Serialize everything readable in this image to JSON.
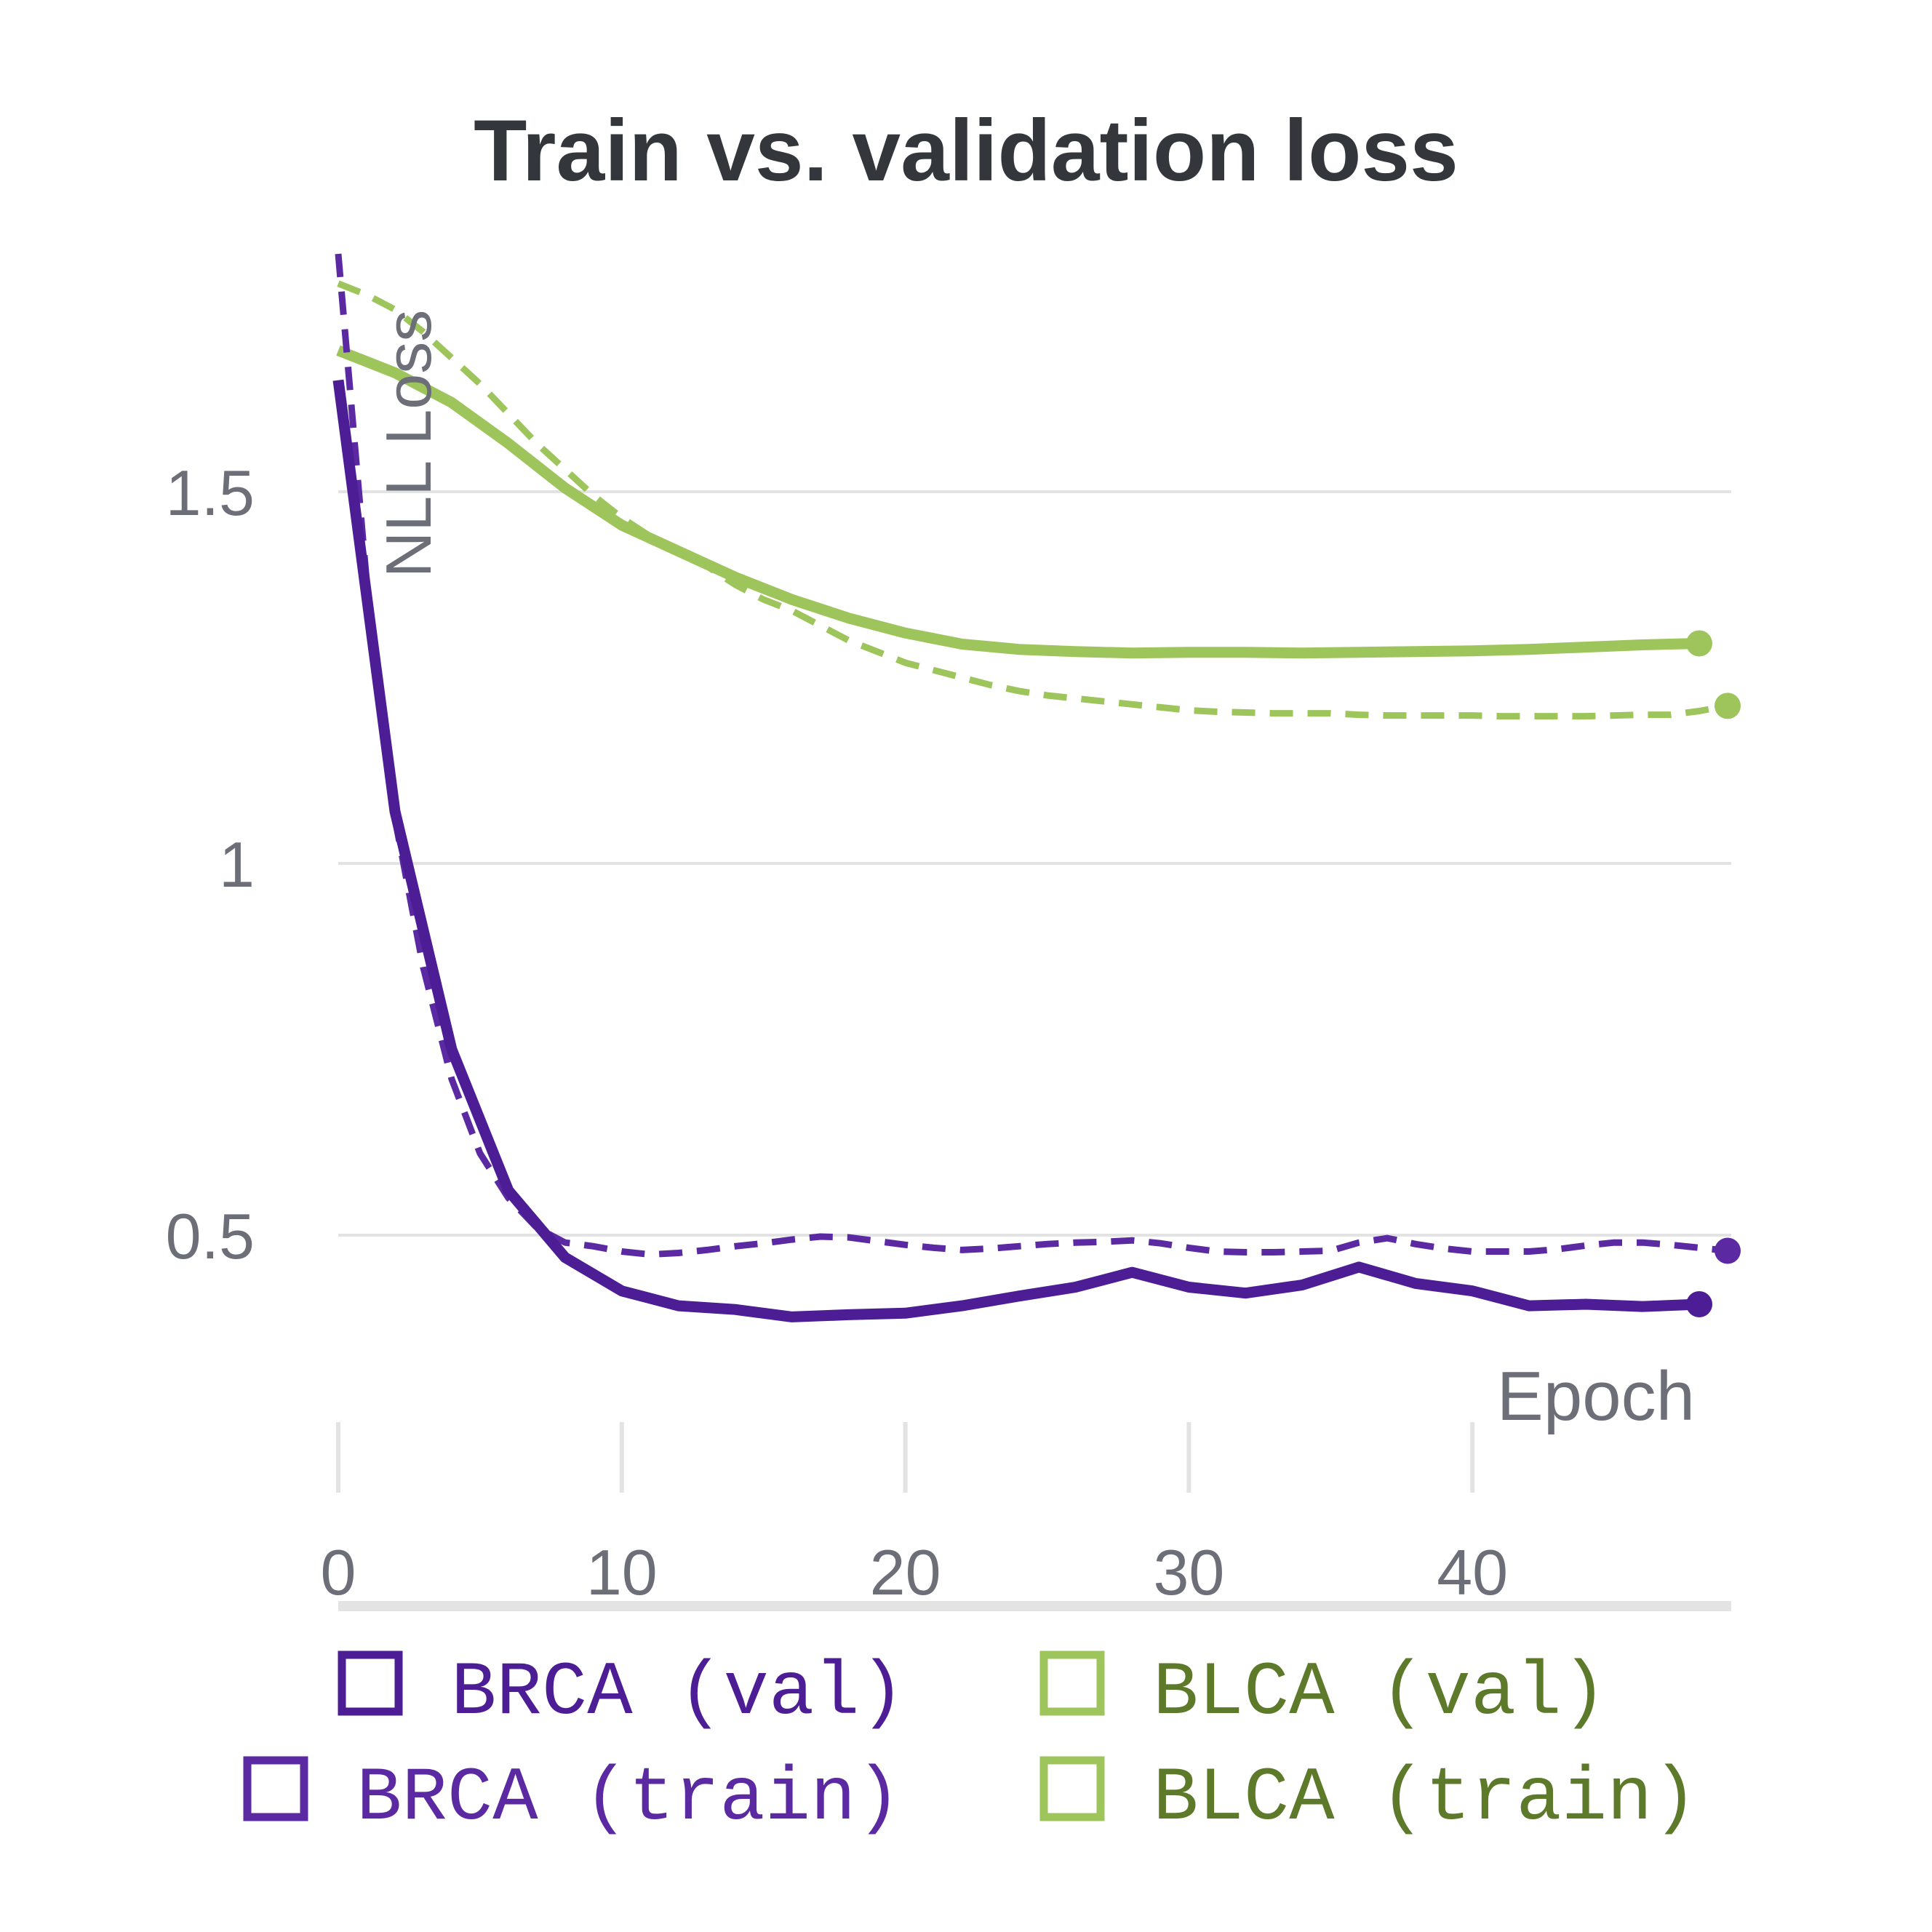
{
  "chart_data": {
    "type": "line",
    "title": "Train vs. validation loss",
    "xlabel": "Epoch",
    "ylabel": "NLL Loss",
    "xlim": [
      0,
      49
    ],
    "ylim": [
      0.24,
      1.82
    ],
    "xticks": [
      0,
      10,
      20,
      30,
      40
    ],
    "xtick_labels": [
      "0",
      "10",
      "20",
      "30",
      "40"
    ],
    "yticks": [
      0.5,
      1,
      1.5
    ],
    "ytick_labels": [
      "0.5",
      "1",
      "1.5"
    ],
    "grid": "horizontal",
    "legend_position": "bottom",
    "series": [
      {
        "name": "BRCA (val)",
        "color": "#4c1d95",
        "style": "solid",
        "x": [
          0,
          2,
          4,
          6,
          8,
          10,
          12,
          14,
          16,
          18,
          20,
          22,
          24,
          26,
          28,
          30,
          32,
          34,
          36,
          38,
          40,
          42,
          44,
          46,
          48
        ],
        "y": [
          1.65,
          1.07,
          0.75,
          0.56,
          0.47,
          0.425,
          0.405,
          0.4,
          0.39,
          0.393,
          0.395,
          0.405,
          0.418,
          0.43,
          0.45,
          0.43,
          0.422,
          0.433,
          0.457,
          0.435,
          0.425,
          0.405,
          0.407,
          0.404,
          0.407
        ]
      },
      {
        "name": "BLCA (val)",
        "color": "#9dc55c",
        "style": "solid",
        "x": [
          0,
          2,
          4,
          6,
          8,
          10,
          12,
          14,
          16,
          18,
          20,
          22,
          24,
          26,
          28,
          30,
          32,
          34,
          36,
          38,
          40,
          42,
          44,
          46,
          48
        ],
        "y": [
          1.69,
          1.66,
          1.62,
          1.565,
          1.505,
          1.455,
          1.42,
          1.385,
          1.355,
          1.33,
          1.31,
          1.295,
          1.288,
          1.285,
          1.283,
          1.284,
          1.284,
          1.283,
          1.284,
          1.285,
          1.286,
          1.288,
          1.291,
          1.294,
          1.296
        ]
      },
      {
        "name": "BRCA (train)",
        "color": "#5b2aa3",
        "style": "dashed",
        "x": [
          0,
          1,
          2,
          3,
          4,
          5,
          6,
          7,
          8,
          9,
          10,
          11,
          12,
          13,
          14,
          15,
          16,
          17,
          18,
          19,
          20,
          21,
          22,
          23,
          24,
          25,
          26,
          27,
          28,
          29,
          30,
          31,
          32,
          33,
          34,
          35,
          36,
          37,
          38,
          39,
          40,
          41,
          42,
          43,
          44,
          45,
          46,
          47,
          48,
          49
        ],
        "y": [
          1.82,
          1.38,
          1.06,
          0.86,
          0.71,
          0.61,
          0.55,
          0.51,
          0.49,
          0.485,
          0.478,
          0.474,
          0.476,
          0.48,
          0.485,
          0.489,
          0.494,
          0.498,
          0.497,
          0.492,
          0.487,
          0.483,
          0.48,
          0.482,
          0.485,
          0.488,
          0.49,
          0.491,
          0.493,
          0.489,
          0.483,
          0.478,
          0.477,
          0.477,
          0.478,
          0.479,
          0.49,
          0.496,
          0.488,
          0.482,
          0.478,
          0.478,
          0.478,
          0.481,
          0.486,
          0.49,
          0.49,
          0.487,
          0.483,
          0.479
        ]
      },
      {
        "name": "BLCA (train)",
        "color": "#9dc55c",
        "style": "dashed",
        "x": [
          0,
          1,
          2,
          3,
          4,
          5,
          6,
          7,
          8,
          9,
          10,
          11,
          12,
          13,
          14,
          15,
          16,
          17,
          18,
          19,
          20,
          21,
          22,
          23,
          24,
          25,
          26,
          27,
          28,
          29,
          30,
          31,
          32,
          33,
          34,
          35,
          36,
          37,
          38,
          39,
          40,
          41,
          42,
          43,
          44,
          45,
          46,
          47,
          48,
          49
        ],
        "y": [
          1.78,
          1.765,
          1.745,
          1.715,
          1.68,
          1.645,
          1.605,
          1.565,
          1.53,
          1.495,
          1.465,
          1.44,
          1.42,
          1.4,
          1.375,
          1.355,
          1.34,
          1.32,
          1.3,
          1.285,
          1.27,
          1.26,
          1.25,
          1.24,
          1.232,
          1.226,
          1.222,
          1.218,
          1.214,
          1.21,
          1.206,
          1.204,
          1.203,
          1.202,
          1.202,
          1.202,
          1.2,
          1.199,
          1.199,
          1.199,
          1.199,
          1.198,
          1.198,
          1.198,
          1.198,
          1.199,
          1.2,
          1.2,
          1.205,
          1.212
        ]
      }
    ],
    "legend": [
      {
        "label": "BRCA (val)",
        "box_color": "#4c1d95",
        "text_color": "#4c1d95"
      },
      {
        "label": "BLCA (val)",
        "box_color": "#9dc55c",
        "text_color": "#5d7a2a"
      },
      {
        "label": "BRCA (train)",
        "box_color": "#5b2aa3",
        "text_color": "#5b2aa3"
      },
      {
        "label": "BLCA (train)",
        "box_color": "#9dc55c",
        "text_color": "#5d7a2a"
      }
    ]
  }
}
